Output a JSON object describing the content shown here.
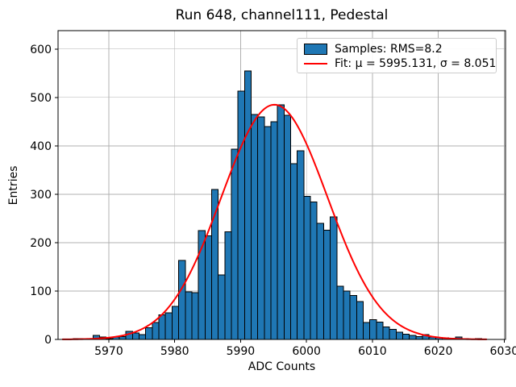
{
  "figure": {
    "title": "Run 648, channel111, Pedestal",
    "xlabel": "ADC Counts",
    "ylabel": "Entries",
    "background": "#ffffff",
    "text_color": "#000000"
  },
  "legend": {
    "items": [
      {
        "swatch": "patch",
        "label": "Samples: RMS=8.2",
        "color": "#1f77b4",
        "edge_color": "#000000"
      },
      {
        "swatch": "line",
        "label": "Fit: μ = 5995.131, σ = 8.051",
        "color": "#ff0000"
      }
    ]
  },
  "chart_data": {
    "type": "bar",
    "subtype": "histogram",
    "title": "Run 648, channel111, Pedestal",
    "xlabel": "ADC Counts",
    "ylabel": "Entries",
    "xlim": [
      5962.3,
      6030.2
    ],
    "ylim": [
      0,
      638
    ],
    "x_ticks": [
      5970,
      5980,
      5990,
      6000,
      6010,
      6020,
      6030
    ],
    "y_ticks": [
      0,
      100,
      200,
      300,
      400,
      500,
      600
    ],
    "grid": true,
    "grid_color": "#b0b0b0",
    "bar_color": "#1f77b4",
    "bar_edge_color": "#000000",
    "histogram": {
      "bin_width": 1,
      "first_bin_left": 5964.6,
      "counts": [
        2,
        2,
        1,
        8,
        5,
        2,
        5,
        6,
        17,
        13,
        10,
        24,
        35,
        51,
        55,
        68,
        163,
        98,
        97,
        225,
        214,
        310,
        133,
        222,
        393,
        513,
        555,
        465,
        460,
        440,
        450,
        485,
        463,
        363,
        390,
        296,
        284,
        240,
        226,
        253,
        110,
        100,
        91,
        78,
        35,
        41,
        36,
        26,
        21,
        15,
        11,
        8,
        6,
        10,
        5,
        4,
        3,
        2,
        5,
        2,
        1,
        2
      ]
    },
    "fit": {
      "shape": "gaussian",
      "mu": 5995.131,
      "sigma": 8.051,
      "amplitude": 485,
      "x_range": [
        5963.0,
        6027.3
      ],
      "color": "#ff0000",
      "rms_label_value": 8.2
    }
  }
}
